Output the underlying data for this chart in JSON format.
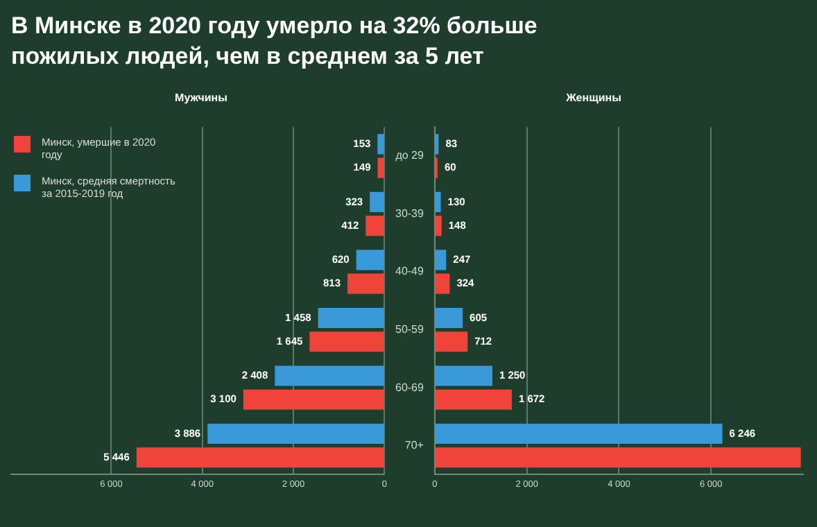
{
  "chart_data": [
    {
      "type": "bar",
      "orientation": "horizontal",
      "title": "В Минске в 2020 году умерло на 32% больше пожилых людей, чем в среднем за 5 лет",
      "subtitle": "Мужчины",
      "categories": [
        null,
        null,
        null,
        null,
        null,
        null
      ],
      "series": [
        {
          "name": "Минск, средняя смертность за 2015-2019 год",
          "color": "#3a9ad9",
          "values": [
            153,
            323,
            620,
            1458,
            2408,
            3886
          ],
          "value_labels": [
            "153",
            "323",
            "620",
            "1 458",
            "2 408",
            "3 886"
          ]
        },
        {
          "name": "Минск, умершие в 2020 году",
          "color": "#f0443a",
          "values": [
            149,
            412,
            813,
            1645,
            3100,
            5446
          ],
          "value_labels": [
            "149",
            "412",
            "813",
            "1 645",
            "3 100",
            "5 446"
          ]
        }
      ],
      "xlim": [
        8200,
        0
      ],
      "xticks": [
        {
          "value": 6000,
          "label": "6 000"
        },
        {
          "value": 4000,
          "label": "4 000"
        },
        {
          "value": 2000,
          "label": "2 000"
        },
        0
      ],
      "grid": "x",
      "legend": "top left",
      "tick_labels": "x"
    },
    {
      "type": "bar",
      "orientation": "horizontal",
      "subtitle": "Женщины",
      "categories": [
        "до 29",
        "30-39",
        "40-49",
        "50-59",
        "60-69",
        "70+"
      ],
      "series": [
        {
          "color": "#3a9ad9",
          "values": [
            83,
            130,
            247,
            605,
            1250,
            6246
          ],
          "value_labels": [
            "83",
            "130",
            "247",
            "605",
            "1 250",
            "6 246"
          ]
        },
        {
          "color": "#f0443a",
          "values": [
            60,
            148,
            324,
            712,
            1672,
            7950
          ],
          "value_labels": [
            "60",
            "148",
            "324",
            "712",
            "1 672",
            null
          ]
        }
      ],
      "xlim": [
        0,
        8000
      ],
      "xticks": [
        0,
        {
          "value": 2000,
          "label": "2 000"
        },
        {
          "value": 4000,
          "label": "4 000"
        },
        {
          "value": 6000,
          "label": "6 000"
        }
      ],
      "grid": "x"
    }
  ]
}
